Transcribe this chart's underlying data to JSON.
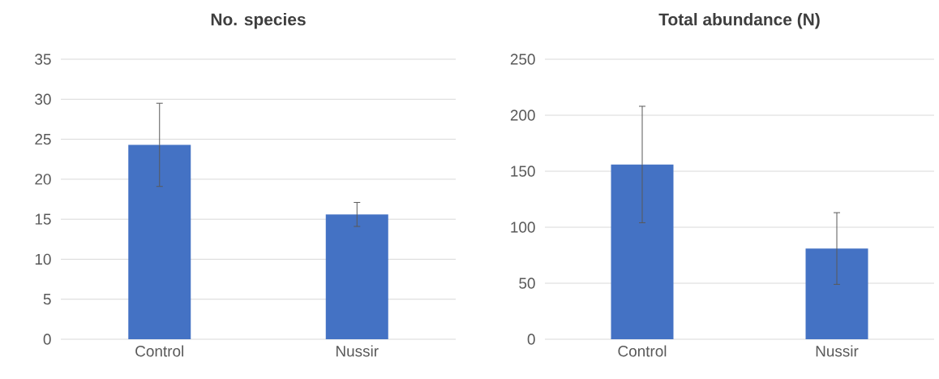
{
  "chart_data": [
    {
      "type": "bar",
      "title": "No. species",
      "categories": [
        "Control",
        "Nussir"
      ],
      "values": [
        24.3,
        15.6
      ],
      "errors": [
        5.2,
        1.5
      ],
      "color": "#4472c4",
      "ylim": [
        0,
        35
      ],
      "yticks": [
        0,
        5,
        10,
        15,
        20,
        25,
        30,
        35
      ],
      "grid": "y"
    },
    {
      "type": "bar",
      "title": "Total abundance (N)",
      "categories": [
        "Control",
        "Nussir"
      ],
      "values": [
        156,
        81
      ],
      "errors": [
        52,
        32
      ],
      "color": "#4472c4",
      "ylim": [
        0,
        250
      ],
      "yticks": [
        0,
        50,
        100,
        150,
        200,
        250
      ],
      "grid": "y"
    }
  ]
}
